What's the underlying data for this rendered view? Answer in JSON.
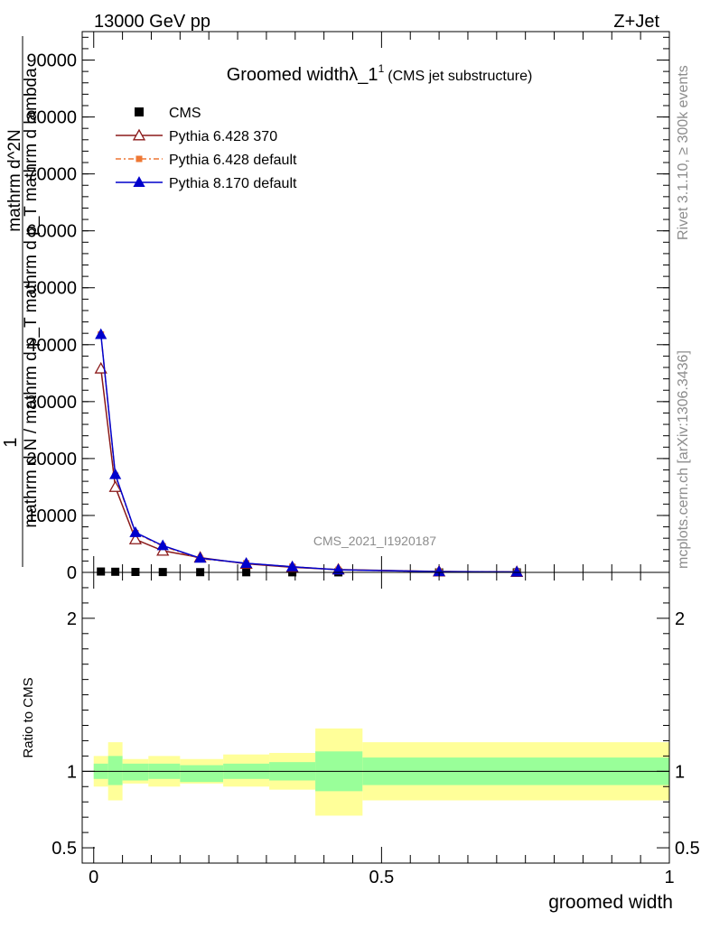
{
  "header": {
    "energy": "13000 GeV pp",
    "process": "Z+Jet",
    "title_main": "Groomed widthλ_1",
    "title_sup": "1",
    "title_note": "(CMS jet substructure)",
    "watermark": "CMS_2021_I1920187",
    "side_top": "Rivet 3.1.10, ≥ 300k events",
    "side_bottom": "mcplots.cern.ch [arXiv:1306.3436]"
  },
  "chart_data": [
    {
      "type": "line",
      "panel": "main",
      "ylabel": "1 / mathrm d N / mathrm d p_T mathrm d p_T mathrm d lambda mathrm d^2N",
      "ylim": [
        0,
        95000
      ],
      "xlim": [
        -0.02,
        1.0
      ],
      "yticks": [
        {
          "v": 0,
          "label": "0"
        },
        {
          "v": 10000,
          "label": "10000"
        },
        {
          "v": 20000,
          "label": "20000"
        },
        {
          "v": 30000,
          "label": "30000"
        },
        {
          "v": 40000,
          "label": "40000"
        },
        {
          "v": 50000,
          "label": "50000"
        },
        {
          "v": 60000,
          "label": "60000"
        },
        {
          "v": 70000,
          "label": "70000"
        },
        {
          "v": 80000,
          "label": "80000"
        },
        {
          "v": 90000,
          "label": "90000"
        }
      ],
      "legend": [
        {
          "name": "CMS",
          "color": "#000000",
          "marker": "square"
        },
        {
          "name": "Pythia 6.428 370",
          "color": "#8b1a1a",
          "marker": "triangle-open"
        },
        {
          "name": "Pythia 6.428 default",
          "color": "#ee7733",
          "marker": "square-small"
        },
        {
          "name": "Pythia 8.170 default",
          "color": "#0000cc",
          "marker": "triangle"
        }
      ],
      "series": [
        {
          "name": "CMS",
          "x": [
            0.0125,
            0.0375,
            0.0725,
            0.12,
            0.185,
            0.265,
            0.345,
            0.425,
            0.6,
            0.735
          ],
          "y": [
            150,
            110,
            80,
            60,
            40,
            25,
            15,
            10,
            5,
            2
          ]
        },
        {
          "name": "Pythia 6.428 370",
          "x": [
            0.0125,
            0.0375,
            0.0725,
            0.12,
            0.185,
            0.265,
            0.345,
            0.425,
            0.6,
            0.735
          ],
          "y": [
            35800,
            15000,
            5800,
            3800,
            2600,
            1500,
            900,
            500,
            150,
            80
          ]
        },
        {
          "name": "Pythia 6.428 default",
          "x": [
            0.0125,
            0.0375,
            0.0725,
            0.12,
            0.185,
            0.265,
            0.345,
            0.425,
            0.6,
            0.735
          ],
          "y": [
            41800,
            17000,
            6900,
            4600,
            2400,
            1600,
            1000,
            450,
            140,
            80
          ]
        },
        {
          "name": "Pythia 8.170 default",
          "x": [
            0.0125,
            0.0375,
            0.0725,
            0.12,
            0.185,
            0.265,
            0.345,
            0.425,
            0.6,
            0.735
          ],
          "y": [
            41800,
            17200,
            7000,
            4700,
            2500,
            1600,
            1000,
            450,
            140,
            80
          ]
        }
      ]
    },
    {
      "type": "area",
      "panel": "ratio",
      "ylabel": "Ratio to CMS",
      "xlabel": "groomed width",
      "ylim": [
        0.4,
        2.3
      ],
      "xlim": [
        -0.02,
        1.0
      ],
      "yticks": [
        {
          "v": 0.5,
          "label": "0.5"
        },
        {
          "v": 1,
          "label": "1"
        },
        {
          "v": 2,
          "label": "2"
        }
      ],
      "xticks": [
        {
          "v": 0,
          "label": "0"
        },
        {
          "v": 0.5,
          "label": "0.5"
        },
        {
          "v": 1,
          "label": "1"
        }
      ],
      "bands": [
        {
          "lo": 0.0,
          "hi": 0.025,
          "inner": [
            0.95,
            1.05
          ],
          "outer": [
            0.9,
            1.1
          ]
        },
        {
          "lo": 0.025,
          "hi": 0.05,
          "inner": [
            0.91,
            1.1
          ],
          "outer": [
            0.81,
            1.19
          ]
        },
        {
          "lo": 0.05,
          "hi": 0.095,
          "inner": [
            0.94,
            1.05
          ],
          "outer": [
            0.92,
            1.08
          ]
        },
        {
          "lo": 0.095,
          "hi": 0.15,
          "inner": [
            0.95,
            1.05
          ],
          "outer": [
            0.9,
            1.1
          ]
        },
        {
          "lo": 0.15,
          "hi": 0.225,
          "inner": [
            0.93,
            1.04
          ],
          "outer": [
            0.92,
            1.08
          ]
        },
        {
          "lo": 0.225,
          "hi": 0.305,
          "inner": [
            0.95,
            1.05
          ],
          "outer": [
            0.9,
            1.11
          ]
        },
        {
          "lo": 0.305,
          "hi": 0.385,
          "inner": [
            0.94,
            1.06
          ],
          "outer": [
            0.88,
            1.12
          ]
        },
        {
          "lo": 0.385,
          "hi": 0.467,
          "inner": [
            0.87,
            1.13
          ],
          "outer": [
            0.71,
            1.28
          ]
        },
        {
          "lo": 0.467,
          "hi": 1.0,
          "inner": [
            0.91,
            1.09
          ],
          "outer": [
            0.81,
            1.19
          ]
        }
      ],
      "colors": {
        "inner": "#99ff99",
        "outer": "#ffff99"
      }
    }
  ]
}
